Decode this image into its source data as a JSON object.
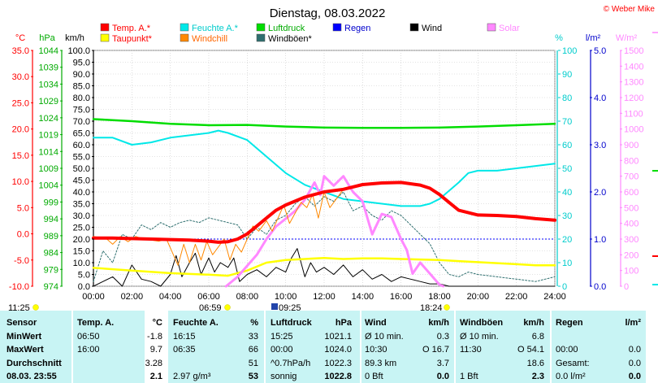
{
  "title": "Dienstag, 08.03.2022",
  "credit": "© Weber Mike",
  "axis_units": {
    "temp": "°C",
    "pressure": "hPa",
    "wind": "km/h",
    "humidity": "%",
    "rain": "l/m²",
    "solar": "W/m²"
  },
  "legend": [
    {
      "label": "Temp. A.*",
      "color": "#ff0000"
    },
    {
      "label": "Feuchte A.*",
      "color": "#00e8e8"
    },
    {
      "label": "Luftdruck",
      "color": "#00dd00"
    },
    {
      "label": "Regen",
      "color": "#0000ff"
    },
    {
      "label": "Wind",
      "color": "#000000"
    },
    {
      "label": "Solar",
      "color": "#ff88ff"
    },
    {
      "label": "Taupunkt*",
      "color": "#ffff00"
    },
    {
      "label": "Windchill",
      "color": "#ff8800"
    },
    {
      "label": "Windböen*",
      "color": "#2f6f6f"
    }
  ],
  "sun": {
    "sunrise": "06:59",
    "sunset": "18:24",
    "moonrise": "11:25",
    "moonset": "09:25"
  },
  "chart_data": {
    "type": "line",
    "x_labels": [
      "00:00",
      "02:00",
      "04:00",
      "06:00",
      "08:00",
      "10:00",
      "12:00",
      "14:00",
      "16:00",
      "18:00",
      "20:00",
      "22:00",
      "24:00"
    ],
    "xlim": [
      0,
      24
    ],
    "axes": {
      "temp": {
        "ticks": [
          "35.0",
          "30.0",
          "25.0",
          "20.0",
          "15.0",
          "10.0",
          "5.0",
          "0.0",
          "-5.0",
          "-10.0"
        ],
        "ylim": [
          -10,
          35
        ]
      },
      "pressure": {
        "ticks": [
          "1044",
          "1039",
          "1034",
          "1029",
          "1024",
          "1019",
          "1014",
          "1009",
          "1004",
          "999",
          "994",
          "989",
          "984",
          "979",
          "974"
        ],
        "ylim": [
          974,
          1044
        ]
      },
      "wind": {
        "ticks": [
          "100.0",
          "95.0",
          "90.0",
          "85.0",
          "80.0",
          "75.0",
          "70.0",
          "65.0",
          "60.0",
          "55.0",
          "50.0",
          "45.0",
          "40.0",
          "35.0",
          "30.0",
          "25.0",
          "20.0",
          "15.0",
          "10.0",
          "5.0",
          "0.0"
        ],
        "ylim": [
          0,
          100
        ]
      },
      "humidity": {
        "ticks": [
          "100",
          "90",
          "80",
          "70",
          "60",
          "50",
          "40",
          "30",
          "20",
          "10",
          "0"
        ],
        "ylim": [
          0,
          100
        ]
      },
      "rain": {
        "ticks": [
          "5.0",
          "4.0",
          "3.0",
          "2.0",
          "1.0",
          "0.0"
        ],
        "ylim": [
          0,
          5
        ]
      },
      "solar": {
        "ticks": [
          "1500",
          "1400",
          "1300",
          "1200",
          "1100",
          "1000",
          "900",
          "800",
          "700",
          "600",
          "500",
          "400",
          "300",
          "200",
          "100",
          "0"
        ],
        "ylim": [
          0,
          1500
        ]
      }
    },
    "series": [
      {
        "name": "Luftdruck",
        "axis": "pressure",
        "color": "#00dd00",
        "width": 2.5,
        "x": [
          0,
          2,
          4,
          6,
          8,
          10,
          12,
          14,
          16,
          18,
          20,
          22,
          24
        ],
        "y": [
          1023.6,
          1023.0,
          1022.2,
          1021.8,
          1021.9,
          1021.4,
          1021.1,
          1021.0,
          1021.0,
          1021.1,
          1021.4,
          1021.8,
          1022.2
        ]
      },
      {
        "name": "Feuchte A.*",
        "axis": "humidity",
        "color": "#00e8e8",
        "width": 2,
        "x": [
          0,
          1,
          2,
          3,
          4,
          5,
          6,
          6.5,
          7,
          8,
          9,
          10,
          11,
          12,
          13,
          14,
          15,
          16,
          17,
          17.5,
          18,
          19,
          19.5,
          20,
          21,
          22,
          23,
          24
        ],
        "y": [
          63,
          63,
          60,
          61,
          63,
          64,
          65,
          66,
          65,
          62,
          55,
          48,
          43,
          40,
          37,
          36,
          35,
          34,
          34,
          35,
          37,
          44,
          48,
          49,
          49,
          50,
          51,
          52
        ]
      },
      {
        "name": "Windböen*",
        "axis": "wind",
        "color": "#2f6f6f",
        "width": 1,
        "dash": "2,2",
        "x": [
          0,
          0.5,
          1,
          1.5,
          2,
          2.5,
          3,
          3.5,
          4,
          4.5,
          5,
          5.5,
          6,
          6.5,
          7,
          7.5,
          8,
          8.5,
          9,
          9.5,
          10,
          10.5,
          11,
          11.5,
          12,
          12.5,
          13,
          13.5,
          14,
          14.5,
          15,
          15.5,
          16,
          16.5,
          17,
          17.5,
          18,
          18.5,
          19,
          19.5,
          20,
          21,
          22,
          23,
          24
        ],
        "y": [
          2,
          15,
          10,
          22,
          20,
          26,
          24,
          27,
          25,
          27,
          28,
          27,
          29,
          28,
          27,
          26,
          20,
          25,
          22,
          28,
          30,
          35,
          38,
          34,
          38,
          36,
          40,
          32,
          34,
          30,
          28,
          32,
          30,
          26,
          22,
          18,
          10,
          5,
          4,
          6,
          5,
          4,
          3,
          2,
          4
        ]
      },
      {
        "name": "Wind",
        "axis": "wind",
        "color": "#000000",
        "width": 1,
        "x": [
          0,
          0.5,
          1,
          1.5,
          2,
          2.5,
          3,
          3.5,
          4,
          4.3,
          4.6,
          5,
          5.3,
          5.6,
          6,
          6.3,
          6.6,
          7,
          7.3,
          7.6,
          8,
          8.5,
          9,
          9.5,
          10,
          10.3,
          10.6,
          11,
          11.3,
          11.6,
          12,
          12.5,
          13,
          13.5,
          14,
          14.5,
          15,
          15.5,
          16,
          16.5,
          17,
          17.5,
          18,
          18.5,
          19,
          20,
          21,
          22,
          23,
          24
        ],
        "y": [
          0,
          2,
          4,
          0,
          9,
          3,
          2,
          0,
          5,
          13,
          4,
          10,
          14,
          5,
          12,
          6,
          10,
          8,
          12,
          2,
          5,
          7,
          4,
          8,
          6,
          12,
          16,
          4,
          10,
          6,
          8,
          5,
          9,
          4,
          7,
          3,
          5,
          2,
          4,
          3,
          2,
          1,
          1,
          0,
          0,
          0,
          0,
          0,
          0,
          0
        ]
      },
      {
        "name": "Taupunkt*",
        "axis": "temp",
        "color": "#ffff00",
        "width": 2.5,
        "x": [
          0,
          2,
          4,
          6,
          7,
          8,
          9,
          10,
          11,
          12,
          13,
          14,
          15,
          16,
          17,
          18,
          19,
          20,
          21,
          22,
          23,
          24
        ],
        "y": [
          -6.5,
          -7.0,
          -7.5,
          -7.8,
          -8.0,
          -7.0,
          -5.5,
          -5.0,
          -4.8,
          -4.6,
          -4.8,
          -4.7,
          -4.7,
          -4.8,
          -4.9,
          -5.0,
          -5.2,
          -5.4,
          -5.6,
          -5.8,
          -6.0,
          -6.0
        ]
      },
      {
        "name": "Solar",
        "axis": "solar",
        "color": "#ff88ff",
        "width": 3,
        "x": [
          6.9,
          7.5,
          8,
          8.5,
          9,
          9.5,
          10,
          10.5,
          11,
          11.5,
          11.8,
          12,
          12.5,
          13,
          13.5,
          14,
          14.5,
          15,
          15.5,
          16,
          16.3,
          16.6,
          17,
          17.5,
          18,
          18.2
        ],
        "y": [
          0,
          60,
          130,
          200,
          300,
          380,
          430,
          480,
          550,
          660,
          580,
          700,
          640,
          700,
          600,
          540,
          330,
          460,
          440,
          300,
          230,
          80,
          150,
          80,
          10,
          0
        ]
      },
      {
        "name": "Windchill",
        "axis": "temp",
        "color": "#ff8800",
        "width": 1,
        "x": [
          0,
          0.7,
          1,
          1.4,
          1.8,
          2.2,
          2.6,
          3,
          3.4,
          3.8,
          4.1,
          4.4,
          4.7,
          5,
          5.3,
          5.6,
          5.9,
          6.2,
          6.5,
          6.8,
          7.1,
          7.4,
          7.7,
          8,
          8.3,
          8.6,
          9,
          9.3,
          9.6,
          9.9,
          10.2,
          10.5,
          10.8,
          11.1,
          11.4,
          11.7,
          12,
          12.3,
          12.6,
          13
        ],
        "y": [
          -0.5,
          -1.0,
          -2.0,
          -0.5,
          -1.5,
          -0.5,
          -1.0,
          -1.2,
          -1.4,
          -1.0,
          -3.5,
          -6.0,
          -2.0,
          -5.5,
          -2.0,
          -5.0,
          -1.5,
          -4.0,
          -2.5,
          -1.0,
          -5.0,
          -2.0,
          -3.5,
          -1.0,
          1.5,
          0.5,
          2.5,
          0.5,
          3.0,
          5.5,
          2.0,
          4.0,
          6.0,
          5.0,
          7.5,
          3.0,
          8.0,
          5.0,
          6.5,
          8.5
        ]
      },
      {
        "name": "Temp. A.*",
        "axis": "temp",
        "color": "#ff0000",
        "width": 4,
        "x": [
          0,
          1,
          2,
          3,
          4,
          5,
          6,
          6.5,
          7,
          7.5,
          8,
          8.5,
          9,
          9.5,
          10,
          11,
          12,
          13,
          14,
          15,
          16,
          17,
          17.5,
          18,
          18.5,
          19,
          20,
          21,
          22,
          23,
          24
        ],
        "y": [
          -0.8,
          -0.8,
          -0.9,
          -1.0,
          -1.1,
          -1.2,
          -1.4,
          -1.6,
          -1.5,
          -1.0,
          0.0,
          1.5,
          3.0,
          4.5,
          5.5,
          7.0,
          8.0,
          8.5,
          9.4,
          9.7,
          9.8,
          9.3,
          8.7,
          7.5,
          6.0,
          4.5,
          3.6,
          3.5,
          3.3,
          2.9,
          2.6
        ]
      }
    ],
    "reference_lines": [
      {
        "axis": "rain",
        "value": 1.0,
        "color": "#0000ff",
        "dash": "2,2"
      }
    ]
  },
  "stats": {
    "headers": {
      "sensor": "Sensor",
      "temp": "Temp. A.",
      "temp_u": "°C",
      "hum": "Feuchte A.",
      "hum_u": "%",
      "pres": "Luftdruck",
      "pres_u": "hPa",
      "wind": "Wind",
      "wind_u": "km/h",
      "gust": "Windböen",
      "gust_u": "km/h",
      "rain": "Regen",
      "rain_u": "l/m²"
    },
    "rows": [
      {
        "label": "MinWert",
        "c": [
          "06:50",
          "-1.8",
          "16:15",
          "33",
          "15:25",
          "1021.1",
          "Ø 10 min.",
          "0.3",
          "Ø 10 min.",
          "6.8",
          "",
          ""
        ]
      },
      {
        "label": "MaxWert",
        "c": [
          "16:00",
          "9.7",
          "06:35",
          "66",
          "00:00",
          "1024.0",
          "10:30",
          "O 16.7",
          "11:30",
          "O 54.1",
          "00:00",
          "0.0"
        ]
      },
      {
        "label": "Durchschnitt",
        "c": [
          "",
          "3.28",
          "",
          "51",
          "^0.7hPa/h",
          "1022.3",
          "89.3 km",
          "3.7",
          "",
          "18.6",
          "Gesamt:",
          "0.0"
        ]
      },
      {
        "label": "08.03.  23:55",
        "c": [
          "",
          "2.1",
          "2.97 g/m³",
          "53",
          "sonnig",
          "1022.8",
          "0 Bft",
          "0.0",
          "1 Bft",
          "2.3",
          "0.0 l/m²",
          "0.0"
        ]
      }
    ]
  }
}
